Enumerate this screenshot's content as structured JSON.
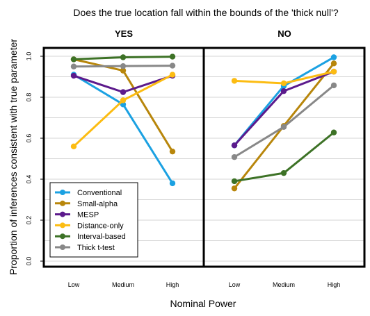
{
  "chart_data": {
    "type": "line",
    "title": "Does the true location fall within the bounds of the 'thick null'?",
    "xlabel": "Nominal Power",
    "ylabel": "Proportion of inferences consistent with true parameter",
    "ylim": [
      0,
      1
    ],
    "yticks": [
      "0.0",
      "0.2",
      "0.4",
      "0.6",
      "0.8",
      "1.0"
    ],
    "categories": [
      "Low",
      "Medium",
      "High"
    ],
    "grid": "horizontal",
    "legend_position": "bottom-left of left panel",
    "panels": [
      {
        "title": "YES",
        "series": [
          {
            "name": "Conventional",
            "color": "#1ba1e2",
            "values": [
              0.91,
              0.765,
              0.38
            ]
          },
          {
            "name": "Small-alpha",
            "color": "#b8860b",
            "values": [
              0.985,
              0.93,
              0.535
            ]
          },
          {
            "name": "MESP",
            "color": "#5c1a8c",
            "values": [
              0.905,
              0.825,
              0.905
            ]
          },
          {
            "name": "Distance-only",
            "color": "#fcbc12",
            "values": [
              0.56,
              0.785,
              0.91
            ]
          },
          {
            "name": "Interval-based",
            "color": "#3d7226",
            "values": [
              0.985,
              0.995,
              0.998
            ]
          },
          {
            "name": "Thick t-test",
            "color": "#888888",
            "values": [
              0.95,
              0.952,
              0.954
            ]
          }
        ]
      },
      {
        "title": "NO",
        "series": [
          {
            "name": "Conventional",
            "color": "#1ba1e2",
            "values": [
              0.565,
              0.855,
              0.995
            ]
          },
          {
            "name": "Small-alpha",
            "color": "#b8860b",
            "values": [
              0.355,
              0.66,
              0.965
            ]
          },
          {
            "name": "MESP",
            "color": "#5c1a8c",
            "values": [
              0.565,
              0.83,
              0.925
            ]
          },
          {
            "name": "Distance-only",
            "color": "#fcbc12",
            "values": [
              0.88,
              0.868,
              0.925
            ]
          },
          {
            "name": "Interval-based",
            "color": "#3d7226",
            "values": [
              0.39,
              0.43,
              0.628
            ]
          },
          {
            "name": "Thick t-test",
            "color": "#888888",
            "values": [
              0.508,
              0.655,
              0.858
            ]
          }
        ]
      }
    ],
    "legend": [
      "Conventional",
      "Small-alpha",
      "MESP",
      "Distance-only",
      "Interval-based",
      "Thick t-test"
    ]
  }
}
